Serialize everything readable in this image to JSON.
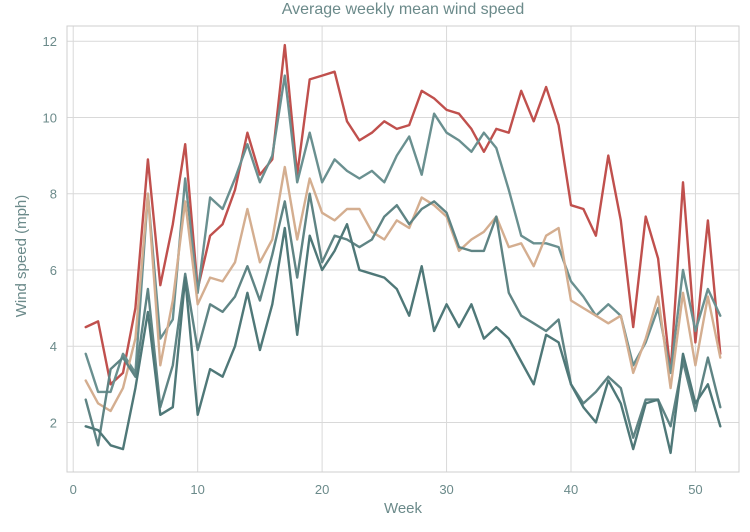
{
  "chart_data": {
    "type": "line",
    "title": "Average weekly mean wind speed",
    "xlabel": "Week",
    "ylabel": "Wind speed (mph)",
    "xlim": [
      -0.5,
      53.5
    ],
    "ylim": [
      0.7,
      12.4
    ],
    "xticks": [
      0,
      10,
      20,
      30,
      40,
      50
    ],
    "yticks": [
      2,
      4,
      6,
      8,
      10,
      12
    ],
    "grid": true,
    "x": [
      1,
      2,
      3,
      4,
      5,
      6,
      7,
      8,
      9,
      10,
      11,
      12,
      13,
      14,
      15,
      16,
      17,
      18,
      19,
      20,
      21,
      22,
      23,
      24,
      25,
      26,
      27,
      28,
      29,
      30,
      31,
      32,
      33,
      34,
      35,
      36,
      37,
      38,
      39,
      40,
      41,
      42,
      43,
      44,
      45,
      46,
      47,
      48,
      49,
      50,
      51,
      52
    ],
    "series": [
      {
        "color": "#c0504d",
        "values": [
          4.5,
          4.65,
          3.0,
          3.3,
          5.0,
          8.9,
          5.6,
          7.2,
          9.3,
          5.5,
          6.9,
          7.2,
          8.1,
          9.6,
          8.5,
          8.9,
          11.9,
          8.5,
          11.0,
          11.1,
          11.2,
          9.9,
          9.4,
          9.6,
          9.9,
          9.7,
          9.8,
          10.7,
          10.5,
          10.2,
          10.1,
          9.7,
          9.1,
          9.7,
          9.6,
          10.7,
          9.9,
          10.8,
          9.8,
          7.7,
          7.6,
          6.9,
          9.0,
          7.3,
          4.5,
          7.4,
          6.3,
          3.3,
          8.3,
          4.1,
          7.3,
          3.8
        ]
      },
      {
        "color": "#6a9090",
        "values": [
          3.8,
          2.8,
          2.8,
          3.8,
          3.3,
          8.0,
          4.2,
          4.7,
          8.4,
          5.4,
          7.9,
          7.6,
          8.4,
          9.3,
          8.3,
          9.0,
          11.1,
          8.3,
          9.6,
          8.3,
          8.9,
          8.6,
          8.4,
          8.6,
          8.3,
          9.0,
          9.5,
          8.5,
          10.1,
          9.6,
          9.4,
          9.1,
          9.6,
          9.2,
          8.1,
          6.9,
          6.7,
          6.7,
          6.6,
          5.7,
          5.3,
          4.8,
          5.1,
          4.8,
          3.5,
          4.1,
          5.0,
          3.3,
          6.0,
          4.4,
          5.5,
          4.8
        ]
      },
      {
        "color": "#d4ae90",
        "values": [
          3.1,
          2.5,
          2.3,
          2.9,
          4.2,
          8.0,
          3.5,
          5.2,
          7.8,
          5.1,
          5.8,
          5.7,
          6.2,
          7.6,
          6.2,
          6.8,
          8.7,
          6.8,
          8.4,
          7.5,
          7.3,
          7.6,
          7.6,
          7.0,
          6.8,
          7.3,
          7.1,
          7.9,
          7.7,
          7.4,
          6.5,
          6.8,
          7.0,
          7.4,
          6.6,
          6.7,
          6.1,
          6.9,
          7.1,
          5.2,
          5.0,
          4.8,
          4.6,
          4.8,
          3.3,
          4.2,
          5.3,
          2.9,
          5.4,
          3.5,
          5.3,
          3.7
        ]
      },
      {
        "color": "#5f8484",
        "values": [
          2.6,
          1.4,
          3.4,
          3.7,
          3.2,
          5.5,
          2.4,
          3.5,
          5.9,
          3.9,
          5.1,
          4.9,
          5.3,
          6.1,
          5.2,
          6.4,
          7.8,
          5.8,
          8.0,
          6.2,
          6.9,
          6.8,
          6.6,
          6.8,
          7.4,
          7.7,
          7.2,
          7.6,
          7.8,
          7.5,
          6.6,
          6.5,
          6.5,
          7.4,
          5.4,
          4.8,
          4.6,
          4.4,
          4.7,
          3.0,
          2.5,
          2.8,
          3.2,
          2.9,
          1.6,
          2.6,
          2.6,
          1.9,
          3.6,
          2.3,
          3.7,
          2.4
        ]
      },
      {
        "color": "#4f7878",
        "values": [
          1.9,
          1.8,
          1.4,
          1.3,
          2.9,
          4.9,
          2.2,
          2.4,
          5.8,
          2.2,
          3.4,
          3.2,
          4.0,
          5.4,
          3.9,
          5.1,
          7.1,
          4.3,
          6.9,
          6.0,
          6.5,
          7.2,
          6.0,
          5.9,
          5.8,
          5.5,
          4.8,
          6.1,
          4.4,
          5.1,
          4.5,
          5.1,
          4.2,
          4.5,
          4.2,
          3.6,
          3.0,
          4.3,
          4.1,
          3.0,
          2.4,
          2.0,
          3.1,
          2.5,
          1.3,
          2.5,
          2.6,
          1.2,
          3.8,
          2.5,
          3.0,
          1.9
        ]
      }
    ]
  }
}
